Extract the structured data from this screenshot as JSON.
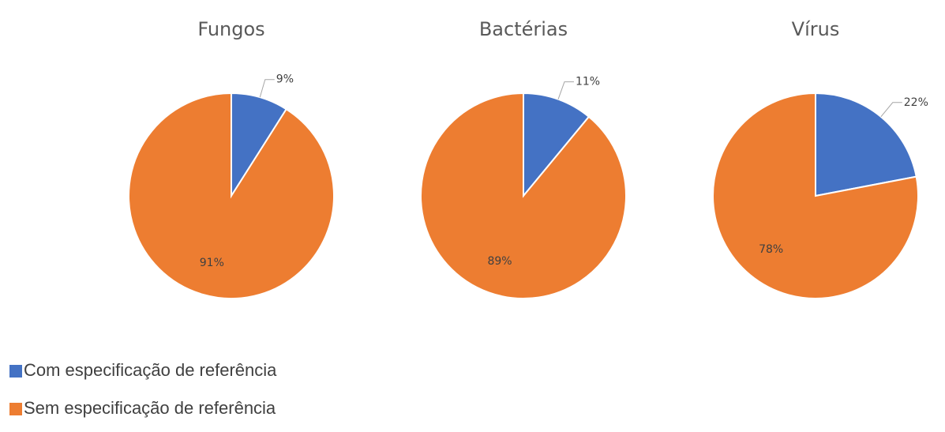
{
  "chart_data": {
    "type": "pie",
    "categories": [
      "Com especificação de referência",
      "Sem especificação de referência"
    ],
    "colors": [
      "#4472c4",
      "#ed7d31"
    ],
    "series": [
      {
        "name": "Fungos",
        "values": [
          9,
          91
        ],
        "value_labels": [
          "9%",
          "91%"
        ]
      },
      {
        "name": "Bactérias",
        "values": [
          11,
          89
        ],
        "value_labels": [
          "11%",
          "89%"
        ]
      },
      {
        "name": "Vírus",
        "values": [
          22,
          78
        ],
        "value_labels": [
          "22%",
          "78%"
        ]
      }
    ]
  }
}
